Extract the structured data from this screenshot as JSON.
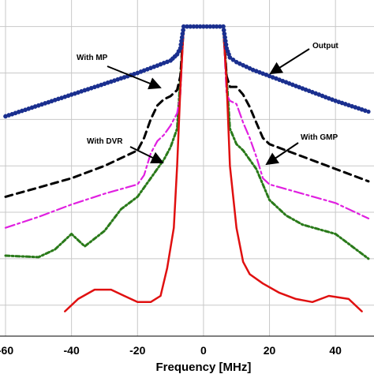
{
  "chart_data": {
    "type": "line",
    "xlabel": "Frequency [MHz]",
    "ylabel": "",
    "title": "",
    "xlim": [
      -60,
      50
    ],
    "ylim": [
      -100,
      5
    ],
    "x_ticks": [
      -60,
      -40,
      -20,
      0,
      20,
      40
    ],
    "y_ticks": [
      -90,
      -75,
      -60,
      -45,
      -30,
      -15,
      0
    ],
    "grid": true,
    "colors": {
      "Output": "#1a2f8f",
      "With MP": "#000000",
      "With GMP": "#e020e0",
      "With DVR": "#2a7a1a",
      "red": "#e01010"
    },
    "series": [
      {
        "name": "Output",
        "style": "solid-markers",
        "x": [
          -60,
          -50,
          -40,
          -30,
          -20,
          -15,
          -10,
          -8,
          -7,
          -6,
          -4,
          -2,
          0,
          2,
          4,
          6,
          7,
          8,
          10,
          15,
          20,
          30,
          40,
          50
        ],
        "y": [
          -29,
          -25.5,
          -22,
          -18.5,
          -15,
          -13,
          -11,
          -9,
          -7,
          0,
          0,
          0,
          0,
          0,
          0,
          0,
          -7,
          -10,
          -11.5,
          -14,
          -16,
          -20,
          -24,
          -27.5
        ]
      },
      {
        "name": "With MP",
        "style": "dashed",
        "x": [
          -60,
          -50,
          -40,
          -30,
          -20,
          -18,
          -16,
          -14,
          -12,
          -10,
          -8,
          -7,
          -6,
          0,
          6,
          7,
          8,
          10,
          12,
          14,
          16,
          18,
          20,
          30,
          40,
          50
        ],
        "y": [
          -55,
          -52,
          -49,
          -45,
          -40,
          -36,
          -30,
          -25.5,
          -23.5,
          -22.5,
          -20.5,
          -16,
          0,
          0,
          0,
          -16,
          -19.5,
          -19.5,
          -22,
          -26,
          -31,
          -36,
          -38,
          -42,
          -46,
          -50
        ]
      },
      {
        "name": "With GMP",
        "style": "dash-dot",
        "x": [
          -60,
          -50,
          -40,
          -30,
          -20,
          -18,
          -16,
          -14,
          -12,
          -10,
          -8,
          -7,
          -6,
          0,
          6,
          7,
          8,
          10,
          12,
          14,
          16,
          18,
          20,
          30,
          40,
          50
        ],
        "y": [
          -65,
          -61.5,
          -57.5,
          -54,
          -51,
          -48,
          -41,
          -37,
          -35,
          -32,
          -28,
          -22,
          0,
          0,
          0,
          -22,
          -24,
          -25,
          -31,
          -36,
          -42,
          -49,
          -51,
          -54,
          -57,
          -62
        ]
      },
      {
        "name": "With DVR",
        "style": "dash-dot",
        "x": [
          -60,
          -50,
          -45,
          -40,
          -38,
          -36,
          -30,
          -25,
          -20,
          -16,
          -12,
          -10,
          -8,
          -6,
          0,
          6,
          8,
          10,
          12,
          16,
          20,
          25,
          30,
          40,
          50
        ],
        "y": [
          -74,
          -74.5,
          -72,
          -67,
          -69,
          -71,
          -66,
          -59,
          -55,
          -49,
          -43,
          -39,
          -33,
          0,
          0,
          0,
          -33,
          -38,
          -40,
          -46,
          -56,
          -61,
          -64,
          -67,
          -75
        ]
      },
      {
        "name": "",
        "style": "solid",
        "x": [
          -42,
          -38,
          -33,
          -28,
          -24,
          -20,
          -16,
          -13,
          -11,
          -9,
          -8,
          -7,
          -6,
          0,
          6,
          7,
          8,
          10,
          12,
          14,
          18,
          23,
          28,
          33,
          38,
          44,
          48
        ],
        "y": [
          -92,
          -88,
          -85,
          -85,
          -87,
          -89,
          -89,
          -87,
          -78,
          -65,
          -45,
          -20,
          0,
          0,
          0,
          -18,
          -45,
          -65,
          -76,
          -80,
          -83,
          -86,
          -88,
          -89,
          -87,
          -88,
          -92
        ]
      }
    ],
    "annotations": [
      {
        "text": "With MP",
        "target_series": "With MP"
      },
      {
        "text": "Output",
        "target_series": "Output"
      },
      {
        "text": "With DVR",
        "target_series": "With DVR"
      },
      {
        "text": "With GMP",
        "target_series": "With GMP"
      }
    ]
  }
}
